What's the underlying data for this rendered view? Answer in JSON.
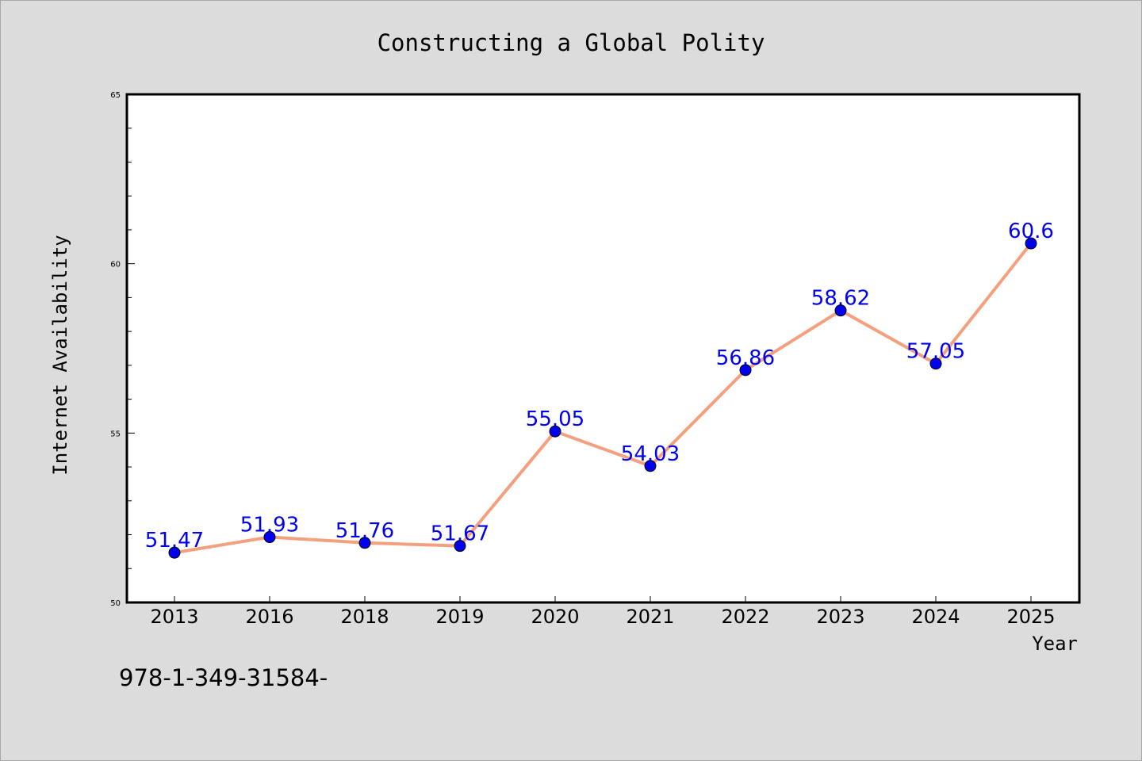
{
  "chart_data": {
    "type": "line",
    "title": "Constructing a Global Polity",
    "xlabel": "Year",
    "ylabel": "Internet Availability",
    "categories": [
      "2013",
      "2016",
      "2018",
      "2019",
      "2020",
      "2021",
      "2022",
      "2023",
      "2024",
      "2025"
    ],
    "series": [
      {
        "values": [
          51.47,
          51.93,
          51.76,
          51.67,
          55.05,
          54.03,
          56.86,
          58.62,
          57.05,
          60.6
        ],
        "labels": [
          "51.47",
          "51.93",
          "51.76",
          "51.67",
          "55.05",
          "54.03",
          "56.86",
          "58.62",
          "57.05",
          "60.6"
        ],
        "line_color": "#f4a07e",
        "marker_color": "#0000ee"
      }
    ],
    "ylim": [
      50,
      65
    ],
    "yticks": [
      "50",
      "55",
      "60",
      "65"
    ],
    "grid": false,
    "legend": "none"
  },
  "footer_text": "978-1-349-31584-",
  "colors": {
    "background": "#dcdcdc",
    "plot_background": "#ffffff",
    "label_color": "#0000ee"
  }
}
